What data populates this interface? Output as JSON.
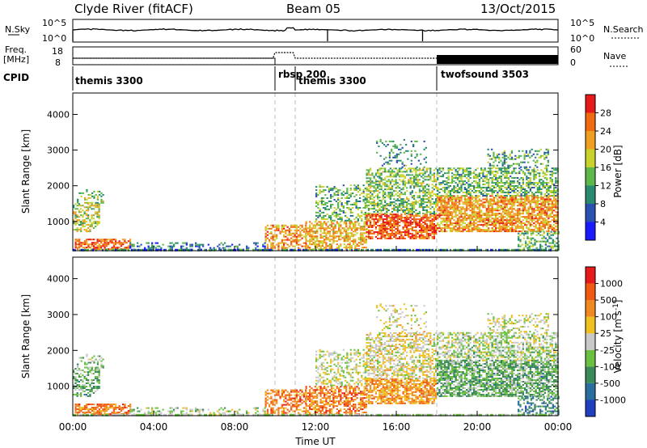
{
  "header": {
    "station": "Clyde River (fitACF)",
    "beam": "Beam 05",
    "date": "13/Oct/2015"
  },
  "top_panels": {
    "nsky_label": "N.Sky",
    "nsky_ticks": [
      "10^5",
      "10^0"
    ],
    "nsearch_label": "N.Search",
    "nsearch_ticks": [
      "10^5",
      "10^0"
    ],
    "freq_label_1": "Freq.",
    "freq_label_2": "[MHz]",
    "freq_ticks": [
      "18",
      "8"
    ],
    "nave_label": "Nave",
    "nave_ticks": [
      "60",
      "0"
    ],
    "cpid_label": "CPID",
    "cpid_segments": [
      {
        "name": "themis 3300",
        "start": 0.0
      },
      {
        "name": "rbsp 200",
        "start": 10.0
      },
      {
        "name": "themis 3300",
        "start": 11.0
      },
      {
        "name": "twofsound 3503",
        "start": 18.0
      }
    ]
  },
  "chart_data": [
    {
      "type": "heatmap",
      "name": "power",
      "ylabel": "Slant Range [km]",
      "ylim": [
        180,
        4600
      ],
      "yticks": [
        "1000",
        "2000",
        "3000",
        "4000"
      ],
      "xlim": [
        0,
        24
      ],
      "colorbar": {
        "label": "Power [dB]",
        "ticks": [
          "4",
          "8",
          "12",
          "16",
          "20",
          "24",
          "28"
        ],
        "colors": [
          "#1a1aff",
          "#2a50b0",
          "#2a8a70",
          "#5cb84a",
          "#c8d22a",
          "#f0a020",
          "#f06a10",
          "#e61a1a"
        ]
      }
    },
    {
      "type": "heatmap",
      "name": "velocity",
      "ylabel": "Slant Range [km]",
      "ylim": [
        180,
        4600
      ],
      "yticks": [
        "1000",
        "2000",
        "3000",
        "4000"
      ],
      "xlim": [
        0,
        24
      ],
      "xlabel": "Time UT",
      "xticks": [
        "00:00",
        "04:00",
        "08:00",
        "12:00",
        "16:00",
        "20:00",
        "00:00"
      ],
      "colorbar": {
        "label": "Velocity [m s^-1]",
        "ticks": [
          "1000",
          "500",
          "100",
          "25",
          "-25",
          "-100",
          "-500",
          "-1000"
        ],
        "colors": [
          "#2040c0",
          "#2a6ea0",
          "#3a8a5a",
          "#6ac040",
          "#c8c8c8",
          "#f0c020",
          "#f08a20",
          "#f05a10",
          "#e61a1a"
        ]
      }
    }
  ]
}
